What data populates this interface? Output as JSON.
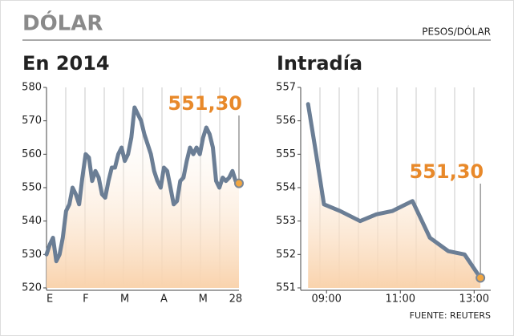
{
  "header": {
    "title": "DÓLAR",
    "unit": "PESOS/DÓLAR"
  },
  "footer": {
    "source": "FUENTE: REUTERS"
  },
  "chart_data": [
    {
      "type": "line",
      "title": "En 2014",
      "color": "#6b7e95",
      "categories": [
        null,
        "E",
        null,
        null,
        null,
        null,
        null,
        null,
        null,
        null,
        null,
        null,
        "F",
        null,
        null,
        null,
        null,
        null,
        null,
        null,
        null,
        null,
        null,
        null,
        "M",
        null,
        null,
        null,
        null,
        null,
        null,
        null,
        null,
        null,
        null,
        null,
        "A",
        null,
        null,
        null,
        null,
        null,
        null,
        null,
        null,
        null,
        null,
        null,
        "M",
        null,
        null,
        null,
        null,
        null,
        null,
        null,
        null,
        null,
        "28",
        null
      ],
      "values": [
        530,
        533,
        535,
        528,
        530,
        535,
        543,
        545,
        550,
        548,
        545,
        553,
        560,
        559,
        552,
        555,
        553,
        548,
        547,
        552,
        556,
        556,
        560,
        562,
        558,
        560,
        565,
        574,
        572,
        570,
        566,
        563,
        560,
        555,
        552,
        550,
        556,
        555,
        550,
        545,
        546,
        552,
        553,
        558,
        562,
        560,
        562,
        560,
        565,
        568,
        566,
        562,
        552,
        550,
        553,
        552,
        553,
        555,
        552,
        551.3
      ],
      "value_labels": [
        null,
        null,
        null,
        null,
        null,
        null,
        null,
        null,
        null,
        null,
        null,
        null,
        null,
        null,
        null,
        null,
        null,
        null,
        null,
        null,
        null,
        null,
        null,
        null,
        null,
        null,
        null,
        null,
        null,
        null,
        null,
        null,
        null,
        null,
        null,
        null,
        null,
        null,
        null,
        null,
        null,
        null,
        null,
        null,
        null,
        null,
        null,
        null,
        null,
        null,
        null,
        null,
        null,
        null,
        null,
        null,
        null,
        null,
        null,
        "551,30"
      ],
      "ylim": [
        520,
        580
      ],
      "yticks": [
        520,
        530,
        540,
        550,
        560,
        570,
        580
      ]
    },
    {
      "type": "line",
      "title": "Intradía",
      "color": "#6b7e95",
      "x": [
        8.5,
        8.72,
        8.93,
        9.37,
        9.91,
        10.35,
        10.78,
        11.33,
        11.8,
        12.3,
        12.74,
        13.17
      ],
      "values": [
        556.5,
        555,
        553.5,
        553.3,
        553,
        553.2,
        553.3,
        553.6,
        552.5,
        552.1,
        552,
        551.3
      ],
      "value_labels": [
        null,
        null,
        null,
        null,
        null,
        null,
        null,
        null,
        null,
        null,
        null,
        "551,30"
      ],
      "xlim": [
        8.3,
        13.45
      ],
      "xticks": [
        {
          "value": 9,
          "label": "09:00"
        },
        {
          "value": 11,
          "label": "11:00"
        },
        {
          "value": 13,
          "label": "13:00"
        }
      ],
      "ylim": [
        551,
        557
      ],
      "yticks": [
        551,
        552,
        553,
        554,
        555,
        556,
        557
      ]
    }
  ]
}
